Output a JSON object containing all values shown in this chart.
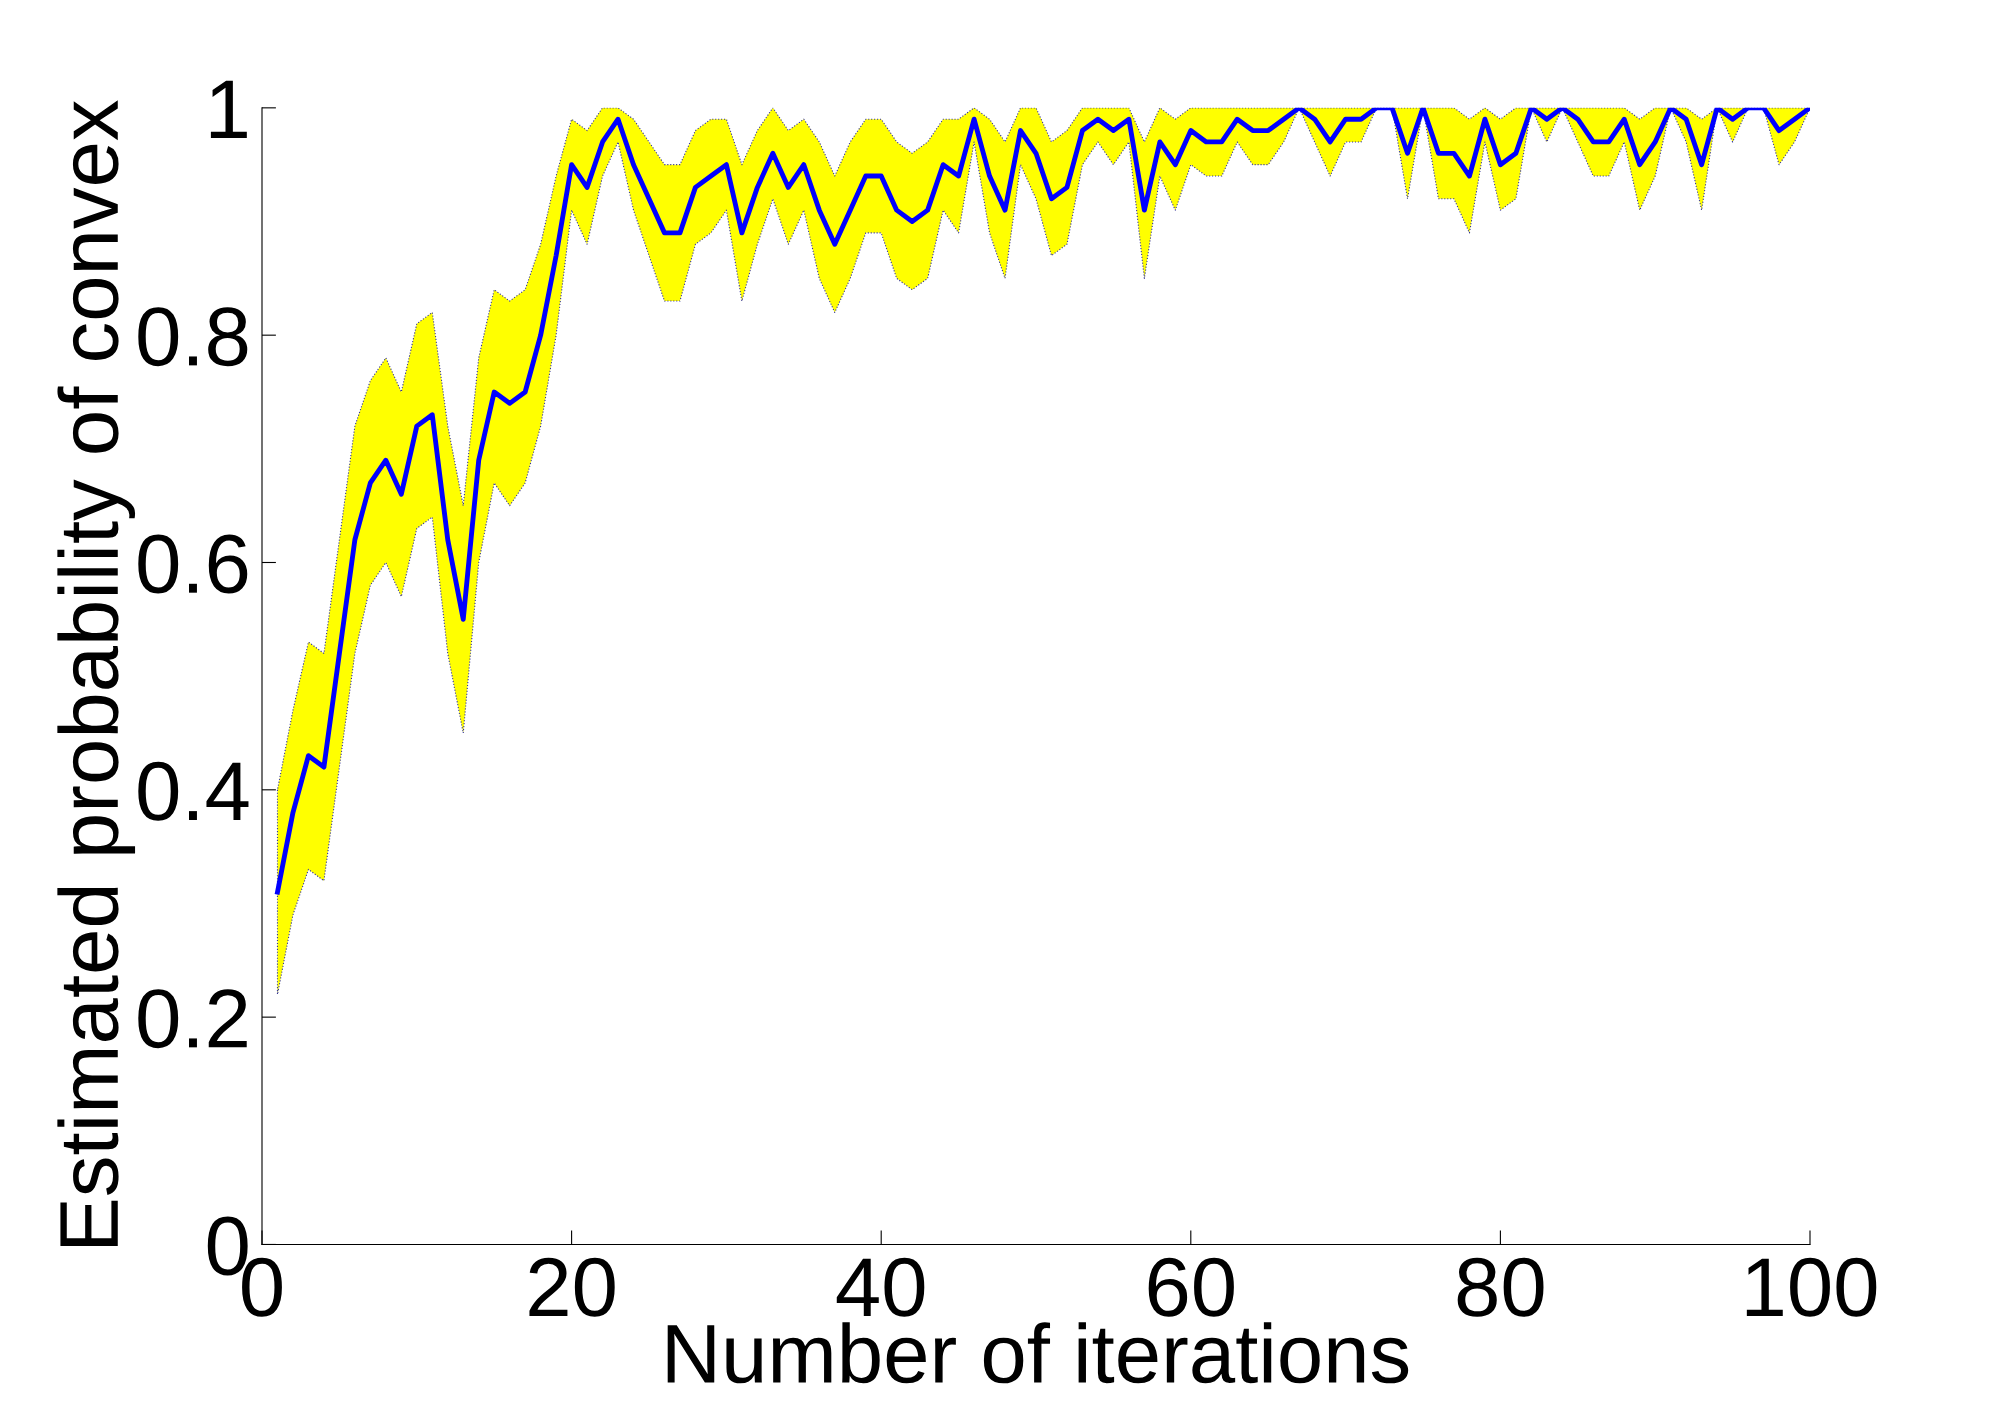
{
  "chart_data": {
    "type": "line",
    "xlabel": "Number of iterations",
    "ylabel": "Estimated probability of convex",
    "xlim": [
      0,
      100
    ],
    "ylim": [
      0,
      1
    ],
    "xticks": [
      0,
      20,
      40,
      60,
      80,
      100
    ],
    "yticks": [
      0,
      0.2,
      0.4,
      0.6,
      0.8,
      1
    ],
    "grid": false,
    "marker": "none",
    "line_style": "solid",
    "x": [
      1,
      2,
      3,
      4,
      5,
      6,
      7,
      8,
      9,
      10,
      11,
      12,
      13,
      14,
      15,
      16,
      17,
      18,
      19,
      20,
      21,
      22,
      23,
      24,
      25,
      26,
      27,
      28,
      29,
      30,
      31,
      32,
      33,
      34,
      35,
      36,
      37,
      38,
      39,
      40,
      41,
      42,
      43,
      44,
      45,
      46,
      47,
      48,
      49,
      50,
      51,
      52,
      53,
      54,
      55,
      56,
      57,
      58,
      59,
      60,
      61,
      62,
      63,
      64,
      65,
      66,
      67,
      68,
      69,
      70,
      71,
      72,
      73,
      74,
      75,
      76,
      77,
      78,
      79,
      80,
      81,
      82,
      83,
      84,
      85,
      86,
      87,
      88,
      89,
      90,
      91,
      92,
      93,
      94,
      95,
      96,
      97,
      98,
      99,
      100
    ],
    "series": [
      {
        "color": "#0000ff",
        "values": [
          0.31,
          0.38,
          0.43,
          0.42,
          0.52,
          0.62,
          0.67,
          0.69,
          0.66,
          0.72,
          0.73,
          0.62,
          0.55,
          0.69,
          0.75,
          0.74,
          0.75,
          0.8,
          0.87,
          0.95,
          0.93,
          0.97,
          0.99,
          0.95,
          0.92,
          0.89,
          0.89,
          0.93,
          0.94,
          0.95,
          0.89,
          0.93,
          0.96,
          0.93,
          0.95,
          0.91,
          0.88,
          0.91,
          0.94,
          0.94,
          0.91,
          0.9,
          0.91,
          0.95,
          0.94,
          0.99,
          0.94,
          0.91,
          0.98,
          0.96,
          0.92,
          0.93,
          0.98,
          0.99,
          0.98,
          0.99,
          0.91,
          0.97,
          0.95,
          0.98,
          0.97,
          0.97,
          0.99,
          0.98,
          0.98,
          0.99,
          1.0,
          0.99,
          0.97,
          0.99,
          0.99,
          1.0,
          1.0,
          0.96,
          1.0,
          0.96,
          0.96,
          0.94,
          0.99,
          0.95,
          0.96,
          1.0,
          0.99,
          1.0,
          0.99,
          0.97,
          0.97,
          0.99,
          0.95,
          0.97,
          1.0,
          0.99,
          0.95,
          1.0,
          0.99,
          1.0,
          1.0,
          0.98,
          0.99,
          1.0
        ],
        "lower": [
          0.22,
          0.29,
          0.33,
          0.32,
          0.42,
          0.52,
          0.58,
          0.6,
          0.57,
          0.63,
          0.64,
          0.52,
          0.45,
          0.6,
          0.67,
          0.65,
          0.67,
          0.72,
          0.8,
          0.91,
          0.88,
          0.94,
          0.97,
          0.91,
          0.87,
          0.83,
          0.83,
          0.88,
          0.89,
          0.91,
          0.83,
          0.88,
          0.92,
          0.88,
          0.91,
          0.85,
          0.82,
          0.85,
          0.89,
          0.89,
          0.85,
          0.84,
          0.85,
          0.91,
          0.89,
          0.97,
          0.89,
          0.85,
          0.95,
          0.92,
          0.87,
          0.88,
          0.95,
          0.97,
          0.95,
          0.97,
          0.85,
          0.94,
          0.91,
          0.95,
          0.94,
          0.94,
          0.97,
          0.95,
          0.95,
          0.97,
          1.0,
          0.97,
          0.94,
          0.97,
          0.97,
          1.0,
          1.0,
          0.92,
          1.0,
          0.92,
          0.92,
          0.89,
          0.97,
          0.91,
          0.92,
          1.0,
          0.97,
          1.0,
          0.97,
          0.94,
          0.94,
          0.97,
          0.91,
          0.94,
          1.0,
          0.97,
          0.91,
          1.0,
          0.97,
          1.0,
          1.0,
          0.95,
          0.97,
          1.0
        ],
        "upper": [
          0.4,
          0.47,
          0.53,
          0.52,
          0.62,
          0.72,
          0.76,
          0.78,
          0.75,
          0.81,
          0.82,
          0.72,
          0.65,
          0.78,
          0.84,
          0.83,
          0.84,
          0.88,
          0.94,
          0.99,
          0.98,
          1.0,
          1.0,
          0.99,
          0.97,
          0.95,
          0.95,
          0.98,
          0.99,
          0.99,
          0.95,
          0.98,
          1.0,
          0.98,
          0.99,
          0.97,
          0.94,
          0.97,
          0.99,
          0.99,
          0.97,
          0.96,
          0.97,
          0.99,
          0.99,
          1.0,
          0.99,
          0.97,
          1.0,
          1.0,
          0.97,
          0.98,
          1.0,
          1.0,
          1.0,
          1.0,
          0.97,
          1.0,
          0.99,
          1.0,
          1.0,
          1.0,
          1.0,
          1.0,
          1.0,
          1.0,
          1.0,
          1.0,
          1.0,
          1.0,
          1.0,
          1.0,
          1.0,
          1.0,
          1.0,
          1.0,
          1.0,
          0.99,
          1.0,
          0.99,
          1.0,
          1.0,
          1.0,
          1.0,
          1.0,
          1.0,
          1.0,
          1.0,
          0.99,
          1.0,
          1.0,
          1.0,
          0.99,
          1.0,
          1.0,
          1.0,
          1.0,
          1.0,
          1.0,
          1.0
        ]
      }
    ]
  }
}
